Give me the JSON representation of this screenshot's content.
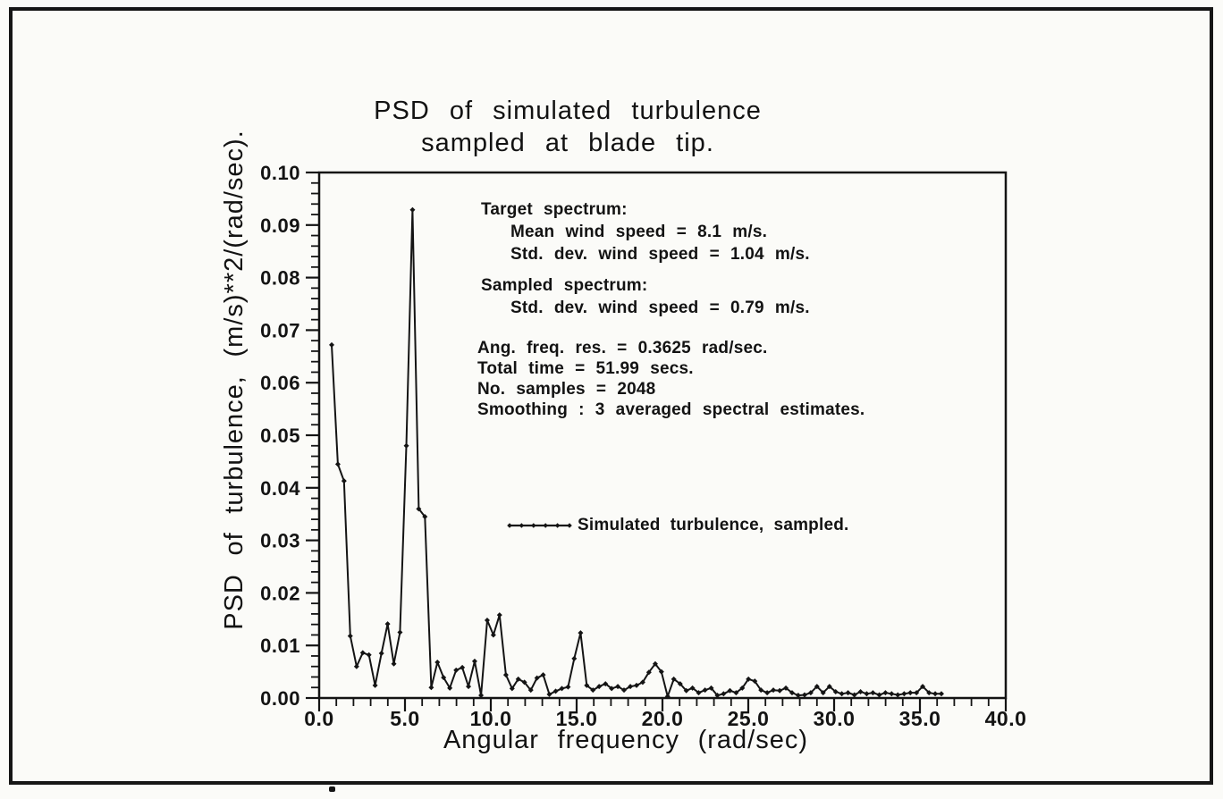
{
  "title": {
    "line1": "PSD of simulated turbulence",
    "line2": "sampled at blade tip."
  },
  "axes": {
    "x_label": "Angular frequency (rad/sec)",
    "y_label": "PSD of turbulence, (m/s)**2/(rad/sec)."
  },
  "annotations": {
    "target_header": "Target spectrum:",
    "target_mean": "Mean wind speed = 8.1 m/s.",
    "target_std": "Std. dev. wind speed = 1.04 m/s.",
    "sampled_header": "Sampled spectrum:",
    "sampled_std": "Std. dev. wind speed = 0.79 m/s.",
    "info_freq_res": "Ang. freq. res. = 0.3625 rad/sec.",
    "info_total_time": "Total time = 51.99 secs.",
    "info_samples": "No. samples = 2048",
    "info_smoothing": "Smoothing : 3 averaged spectral estimates."
  },
  "legend": {
    "label": "Simulated turbulence, sampled."
  },
  "colors": {
    "ink": "#141414",
    "paper": "#fbfbf8"
  },
  "chart_data": {
    "type": "line",
    "title": "PSD of simulated turbulence sampled at blade tip.",
    "xlabel": "Angular frequency (rad/sec)",
    "ylabel": "PSD of turbulence, (m/s)**2/(rad/sec).",
    "xlim": [
      0.0,
      40.0
    ],
    "ylim": [
      0.0,
      0.1
    ],
    "x_major_ticks": [
      0.0,
      5.0,
      10.0,
      15.0,
      20.0,
      25.0,
      30.0,
      35.0,
      40.0
    ],
    "x_minor_step": 1.0,
    "y_major_ticks": [
      0.0,
      0.01,
      0.02,
      0.03,
      0.04,
      0.05,
      0.06,
      0.07,
      0.08,
      0.09,
      0.1
    ],
    "y_minor_step": 0.002,
    "grid": false,
    "legend_position": "center-right inside plot",
    "marker": "diamond",
    "series": [
      {
        "name": "Simulated turbulence, sampled.",
        "points": [
          [
            0.73,
            0.0672
          ],
          [
            1.09,
            0.0445
          ],
          [
            1.45,
            0.0413
          ],
          [
            1.81,
            0.0118
          ],
          [
            2.18,
            0.006
          ],
          [
            2.54,
            0.0086
          ],
          [
            2.9,
            0.0082
          ],
          [
            3.26,
            0.0024
          ],
          [
            3.63,
            0.0085
          ],
          [
            3.99,
            0.0141
          ],
          [
            4.35,
            0.0065
          ],
          [
            4.71,
            0.0125
          ],
          [
            5.08,
            0.048
          ],
          [
            5.44,
            0.0929
          ],
          [
            5.8,
            0.036
          ],
          [
            6.16,
            0.0345
          ],
          [
            6.53,
            0.002
          ],
          [
            6.89,
            0.0068
          ],
          [
            7.25,
            0.0039
          ],
          [
            7.61,
            0.0019
          ],
          [
            7.98,
            0.0053
          ],
          [
            8.34,
            0.0058
          ],
          [
            8.7,
            0.0022
          ],
          [
            9.06,
            0.007
          ],
          [
            9.43,
            0.0005
          ],
          [
            9.79,
            0.0148
          ],
          [
            10.15,
            0.012
          ],
          [
            10.51,
            0.0158
          ],
          [
            10.88,
            0.0044
          ],
          [
            11.24,
            0.0018
          ],
          [
            11.6,
            0.0036
          ],
          [
            11.96,
            0.003
          ],
          [
            12.33,
            0.0015
          ],
          [
            12.69,
            0.0038
          ],
          [
            13.05,
            0.0044
          ],
          [
            13.41,
            0.0007
          ],
          [
            13.78,
            0.0013
          ],
          [
            14.14,
            0.0018
          ],
          [
            14.5,
            0.0021
          ],
          [
            14.86,
            0.0075
          ],
          [
            15.23,
            0.0124
          ],
          [
            15.59,
            0.0024
          ],
          [
            15.95,
            0.0015
          ],
          [
            16.31,
            0.0022
          ],
          [
            16.68,
            0.0027
          ],
          [
            17.04,
            0.0018
          ],
          [
            17.4,
            0.0022
          ],
          [
            17.76,
            0.0015
          ],
          [
            18.13,
            0.0022
          ],
          [
            18.49,
            0.0024
          ],
          [
            18.85,
            0.003
          ],
          [
            19.21,
            0.0049
          ],
          [
            19.58,
            0.0065
          ],
          [
            19.94,
            0.005
          ],
          [
            20.3,
            0.0003
          ],
          [
            20.66,
            0.0036
          ],
          [
            21.03,
            0.0027
          ],
          [
            21.39,
            0.0014
          ],
          [
            21.75,
            0.0019
          ],
          [
            22.11,
            0.001
          ],
          [
            22.48,
            0.0015
          ],
          [
            22.84,
            0.0019
          ],
          [
            23.2,
            0.0005
          ],
          [
            23.56,
            0.0008
          ],
          [
            23.93,
            0.0014
          ],
          [
            24.29,
            0.001
          ],
          [
            24.65,
            0.0019
          ],
          [
            25.01,
            0.0036
          ],
          [
            25.38,
            0.0032
          ],
          [
            25.74,
            0.0015
          ],
          [
            26.1,
            0.001
          ],
          [
            26.46,
            0.0015
          ],
          [
            26.83,
            0.0014
          ],
          [
            27.19,
            0.0019
          ],
          [
            27.55,
            0.001
          ],
          [
            27.91,
            0.0005
          ],
          [
            28.28,
            0.0006
          ],
          [
            28.64,
            0.001
          ],
          [
            29.0,
            0.0022
          ],
          [
            29.36,
            0.001
          ],
          [
            29.73,
            0.0022
          ],
          [
            30.09,
            0.0012
          ],
          [
            30.45,
            0.0008
          ],
          [
            30.81,
            0.001
          ],
          [
            31.18,
            0.0006
          ],
          [
            31.54,
            0.0012
          ],
          [
            31.9,
            0.0008
          ],
          [
            32.26,
            0.001
          ],
          [
            32.63,
            0.0006
          ],
          [
            32.99,
            0.001
          ],
          [
            33.35,
            0.0008
          ],
          [
            33.71,
            0.0006
          ],
          [
            34.08,
            0.0008
          ],
          [
            34.44,
            0.001
          ],
          [
            34.8,
            0.001
          ],
          [
            35.16,
            0.0022
          ],
          [
            35.53,
            0.001
          ],
          [
            35.89,
            0.0008
          ],
          [
            36.25,
            0.0008
          ]
        ]
      }
    ]
  }
}
